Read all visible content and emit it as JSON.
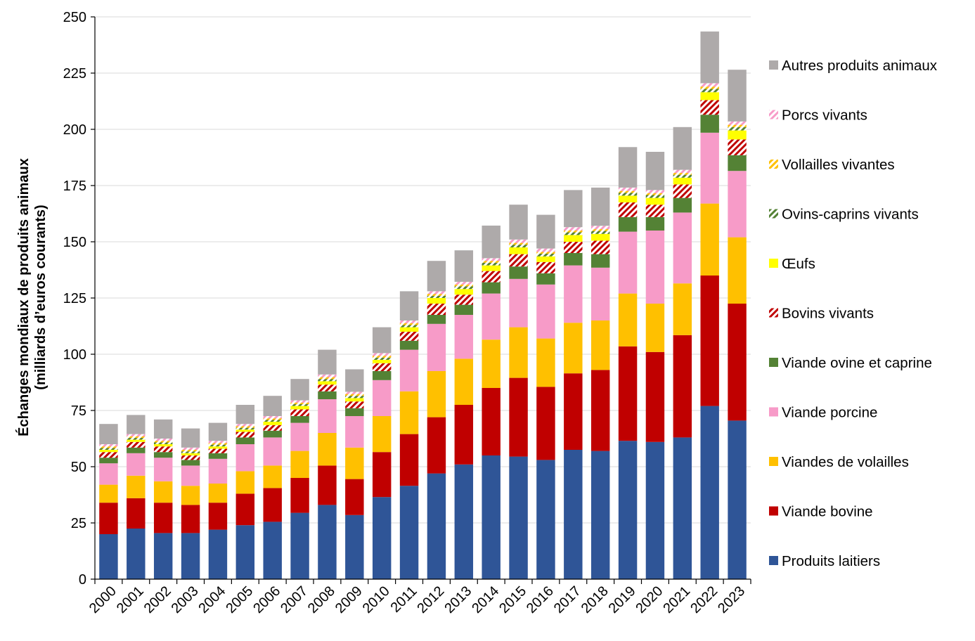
{
  "chart_data": {
    "type": "bar",
    "stacked": true,
    "title": "",
    "xlabel": "",
    "ylabel_lines": [
      "Échanges mondiaux de produits animaux",
      "(milliards d’euros courants)"
    ],
    "ylim": [
      0,
      250
    ],
    "yticks": [
      0,
      25,
      50,
      75,
      100,
      125,
      150,
      175,
      200,
      225,
      250
    ],
    "grid": true,
    "legend_position": "right",
    "categories": [
      "2000",
      "2001",
      "2002",
      "2003",
      "2004",
      "2005",
      "2006",
      "2007",
      "2008",
      "2009",
      "2010",
      "2011",
      "2012",
      "2013",
      "2014",
      "2015",
      "2016",
      "2017",
      "2018",
      "2019",
      "2020",
      "2021",
      "2022",
      "2023"
    ],
    "series": [
      {
        "name": "Produits laitiers",
        "color": "#2F5597",
        "pattern": "solid",
        "values": [
          20.0,
          22.5,
          20.5,
          20.5,
          22.0,
          24.0,
          25.5,
          29.5,
          33.0,
          28.5,
          36.5,
          41.5,
          47.0,
          51.0,
          55.0,
          54.5,
          53.0,
          57.5,
          57.0,
          61.5,
          61.0,
          63.0,
          77.0,
          70.5
        ]
      },
      {
        "name": "Viande bovine",
        "color": "#C00000",
        "pattern": "solid",
        "values": [
          14.0,
          13.5,
          13.5,
          12.5,
          12.0,
          14.0,
          15.0,
          15.5,
          17.5,
          16.0,
          20.0,
          23.0,
          25.0,
          26.5,
          30.0,
          35.0,
          32.5,
          34.0,
          36.0,
          42.0,
          40.0,
          45.5,
          58.0,
          52.0
        ]
      },
      {
        "name": "Viandes de volailles",
        "color": "#FFC000",
        "pattern": "solid",
        "values": [
          8.0,
          10.0,
          9.5,
          8.5,
          8.5,
          10.0,
          10.0,
          12.0,
          14.5,
          14.0,
          16.0,
          19.0,
          20.5,
          20.5,
          21.5,
          22.5,
          21.5,
          22.5,
          22.0,
          23.5,
          21.5,
          23.0,
          32.0,
          29.5
        ]
      },
      {
        "name": "Viande porcine",
        "color": "#F79BC8",
        "pattern": "solid",
        "values": [
          9.5,
          10.0,
          10.5,
          9.0,
          11.0,
          12.0,
          12.5,
          12.5,
          15.0,
          14.0,
          16.0,
          18.5,
          21.0,
          19.5,
          20.5,
          21.5,
          24.0,
          25.5,
          23.5,
          27.5,
          32.5,
          31.5,
          31.5,
          29.5
        ]
      },
      {
        "name": "Viande ovine et caprine",
        "color": "#548235",
        "pattern": "solid",
        "values": [
          2.5,
          2.5,
          2.5,
          2.5,
          2.5,
          3.0,
          3.0,
          3.0,
          3.5,
          3.5,
          4.0,
          4.0,
          4.0,
          4.5,
          5.0,
          5.5,
          5.0,
          5.5,
          6.0,
          6.5,
          6.0,
          6.5,
          8.0,
          7.0
        ]
      },
      {
        "name": "Bovins vivants",
        "color": "#C00000",
        "pattern": "hatch",
        "values": [
          2.5,
          2.5,
          2.5,
          2.0,
          2.0,
          2.5,
          2.5,
          3.0,
          3.0,
          3.0,
          3.5,
          4.0,
          5.0,
          4.5,
          5.0,
          5.5,
          5.0,
          5.0,
          6.0,
          6.5,
          5.5,
          6.0,
          6.5,
          7.0
        ]
      },
      {
        "name": "Œufs",
        "color": "#FFFF00",
        "pattern": "solid",
        "values": [
          1.0,
          1.0,
          1.0,
          1.0,
          1.0,
          1.0,
          1.5,
          1.5,
          1.5,
          1.5,
          1.5,
          2.0,
          2.5,
          2.5,
          2.5,
          3.0,
          2.5,
          3.0,
          3.0,
          3.0,
          3.0,
          3.0,
          3.5,
          4.0
        ]
      },
      {
        "name": "Ovins-caprins vivants",
        "color": "#548235",
        "pattern": "hatch",
        "values": [
          0.8,
          0.8,
          0.8,
          0.8,
          0.8,
          0.8,
          0.8,
          0.8,
          1.0,
          1.0,
          1.0,
          1.0,
          1.0,
          1.2,
          1.2,
          1.2,
          1.2,
          1.2,
          1.3,
          1.3,
          1.3,
          1.3,
          1.5,
          1.5
        ]
      },
      {
        "name": "Vollailles vivantes",
        "color": "#FFC000",
        "pattern": "hatch",
        "values": [
          0.7,
          0.7,
          0.7,
          0.7,
          0.7,
          0.7,
          0.7,
          0.7,
          0.8,
          0.8,
          0.8,
          0.8,
          0.8,
          0.8,
          0.8,
          0.8,
          0.8,
          0.8,
          0.8,
          0.8,
          0.8,
          0.8,
          1.0,
          1.0
        ]
      },
      {
        "name": "Porcs vivants",
        "color": "#F79BC8",
        "pattern": "hatch",
        "values": [
          1.0,
          1.0,
          1.0,
          1.0,
          1.0,
          1.0,
          1.0,
          1.0,
          1.2,
          1.0,
          1.2,
          1.2,
          1.2,
          1.2,
          1.2,
          1.5,
          1.5,
          1.5,
          1.5,
          1.5,
          1.4,
          1.4,
          1.5,
          1.5
        ]
      },
      {
        "name": "Autres produits animaux",
        "color": "#AEAAAA",
        "pattern": "solid",
        "values": [
          9.0,
          8.5,
          8.5,
          8.5,
          8.0,
          8.5,
          9.0,
          9.5,
          11.0,
          10.0,
          11.5,
          13.0,
          13.5,
          14.0,
          14.5,
          15.5,
          15.0,
          16.5,
          17.0,
          18.0,
          17.0,
          19.0,
          23.0,
          23.0
        ]
      }
    ]
  }
}
